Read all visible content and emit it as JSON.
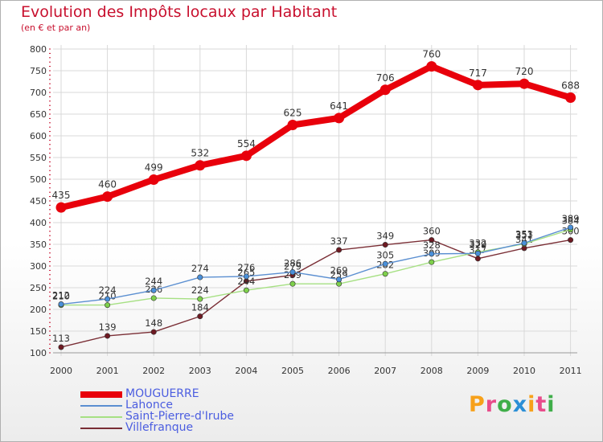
{
  "title": "Evolution des Impôts locaux par Habitant",
  "subtitle": "(en € et par an)",
  "brand": "Proxiti",
  "colors": {
    "title": "#c8102e",
    "grid": "#d9d9d9",
    "axis_ticks": "#c8102e",
    "legend_text": "#4b5de0"
  },
  "chart_data": {
    "type": "line",
    "title": "Evolution des Impôts locaux par Habitant",
    "subtitle": "(en € et par an)",
    "xlabel": "",
    "ylabel": "",
    "x": [
      "2000",
      "2001",
      "2002",
      "2003",
      "2004",
      "2005",
      "2006",
      "2007",
      "2008",
      "2009",
      "2010",
      "2011"
    ],
    "ylim": [
      100,
      800
    ],
    "yticks": [
      100,
      150,
      200,
      250,
      300,
      350,
      400,
      450,
      500,
      550,
      600,
      650,
      700,
      750,
      800
    ],
    "grid": true,
    "legend": "bottom-left",
    "series": [
      {
        "name": "MOUGUERRE",
        "color": "#e8000b",
        "style": "thick",
        "values": [
          435,
          460,
          499,
          532,
          554,
          625,
          641,
          706,
          760,
          717,
          720,
          688
        ],
        "labels": [
          "435",
          "460",
          "499",
          "532",
          "554",
          "625",
          "641",
          "706",
          "760",
          "717",
          "720",
          "688"
        ]
      },
      {
        "name": "Lahonce",
        "color": "#5b8fd1",
        "marker": "#4a90d9",
        "style": "thin",
        "values": [
          212,
          224,
          244,
          274,
          276,
          286,
          269,
          305,
          328,
          329,
          353,
          389
        ],
        "labels": [
          "212",
          "224",
          "244",
          "274",
          "276",
          "286",
          "269",
          "305",
          "328",
          "329",
          "353",
          "389"
        ]
      },
      {
        "name": "Saint-Pierre-d'Irube",
        "color": "#a6e083",
        "marker": "#7ed04b",
        "style": "thin",
        "values": [
          210,
          210,
          226,
          224,
          244,
          259,
          259,
          282,
          309,
          332,
          351,
          384
        ],
        "labels": [
          "210",
          "210",
          "226",
          "224",
          "244",
          "259",
          "259",
          "282",
          "309",
          "332",
          "351",
          "384"
        ]
      },
      {
        "name": "Villefranque",
        "color": "#7a2e35",
        "marker": "#6e1a22",
        "style": "thin",
        "values": [
          113,
          139,
          148,
          184,
          265,
          279,
          337,
          349,
          360,
          317,
          341,
          360
        ],
        "labels": [
          "113",
          "139",
          "148",
          "184",
          "265",
          "279",
          "337",
          "349",
          "360",
          "317",
          "341",
          "360"
        ]
      }
    ]
  }
}
